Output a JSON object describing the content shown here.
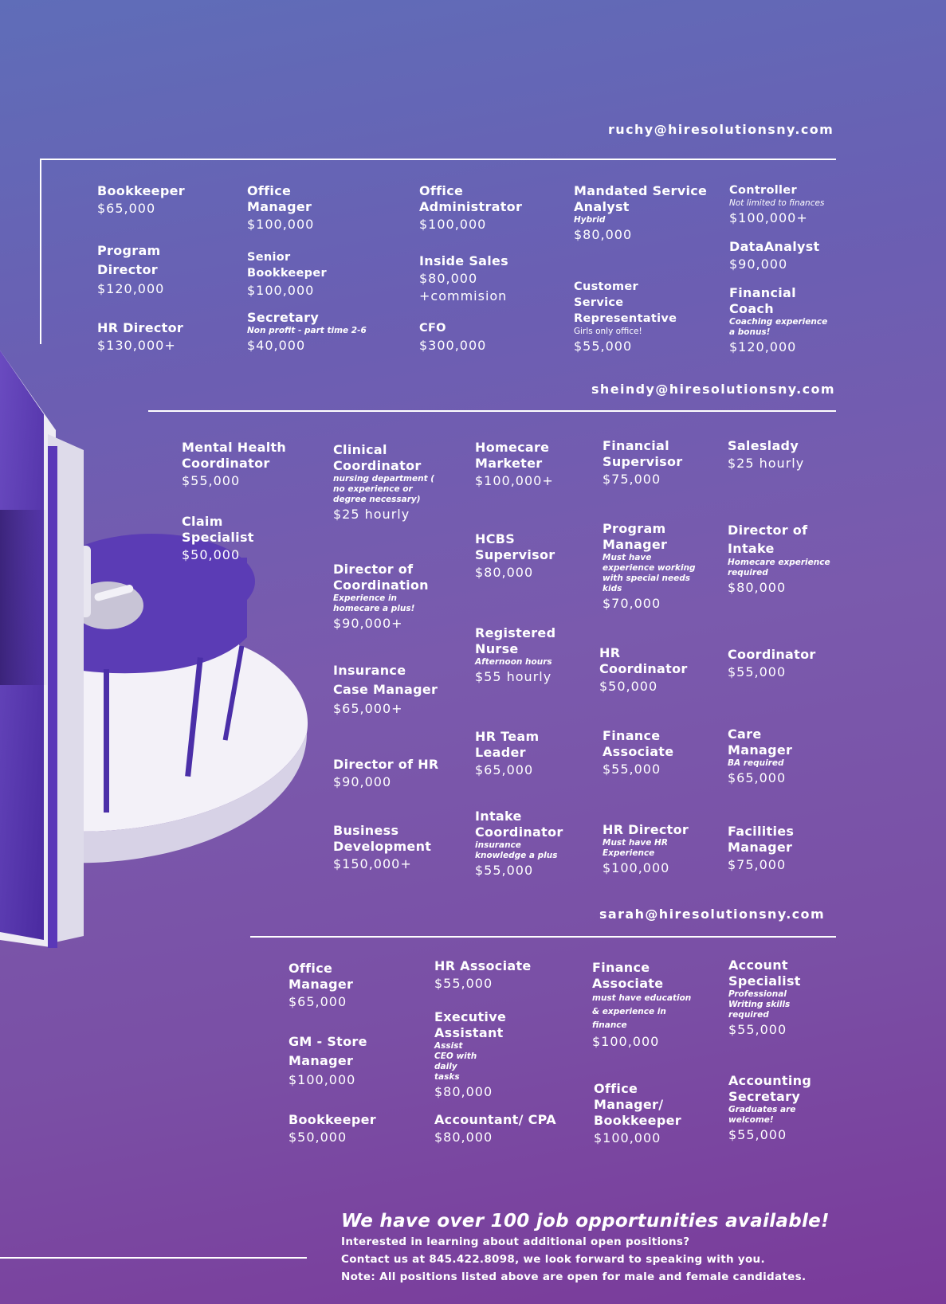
{
  "sections": [
    {
      "email": "ruchy@hiresolutionsny.com",
      "jobs": [
        {
          "title": "Bookkeeper",
          "note": "",
          "salary": "$65,000"
        },
        {
          "title": "Program Director",
          "note": "",
          "salary": "$120,000"
        },
        {
          "title": "HR Director",
          "note": "",
          "salary": "$130,000+"
        },
        {
          "title": "Office Manager",
          "note": "",
          "salary": "$100,000"
        },
        {
          "title": "Senior Bookkeeper",
          "note": "",
          "salary": "$100,000"
        },
        {
          "title": "Secretary",
          "note": "Non profit - part time 2-6",
          "salary": "$40,000"
        },
        {
          "title": "Office Administrator",
          "note": "",
          "salary": "$100,000"
        },
        {
          "title": "Inside Sales",
          "note": "",
          "salary": "$80,000 +commision"
        },
        {
          "title": "CFO",
          "note": "",
          "salary": "$300,000"
        },
        {
          "title": "Mandated Service Analyst",
          "note": "Hybrid",
          "salary": "$80,000"
        },
        {
          "title": "Customer Service Representative",
          "note": "Girls only office!",
          "salary": "$55,000"
        },
        {
          "title": "Controller",
          "note": "Not limited to finances",
          "salary": "$100,000+"
        },
        {
          "title": "DataAnalyst",
          "note": "",
          "salary": "$90,000"
        },
        {
          "title": "Financial Coach",
          "note": "Coaching experience a bonus!",
          "salary": "$120,000"
        }
      ]
    },
    {
      "email": "sheindy@hiresolutionsny.com",
      "jobs": [
        {
          "title": "Mental Health Coordinator",
          "note": "",
          "salary": "$55,000"
        },
        {
          "title": "Claim Specialist",
          "note": "",
          "salary": "$50,000"
        },
        {
          "title": "Clinical Coordinator",
          "note": "nursing department ( no experience or degree necessary)",
          "salary": "$25 hourly"
        },
        {
          "title": "Director of Coordination",
          "note": "Experience in homecare a plus!",
          "salary": "$90,000+"
        },
        {
          "title": "Insurance Case Manager",
          "note": "",
          "salary": "$65,000+"
        },
        {
          "title": "Director of HR",
          "note": "",
          "salary": "$90,000"
        },
        {
          "title": "Business Development",
          "note": "",
          "salary": "$150,000+"
        },
        {
          "title": "Homecare Marketer",
          "note": "",
          "salary": "$100,000+"
        },
        {
          "title": "HCBS Supervisor",
          "note": "",
          "salary": "$80,000"
        },
        {
          "title": "Registered Nurse",
          "note": "Afternoon hours",
          "salary": "$55 hourly"
        },
        {
          "title": "HR Team Leader",
          "note": "",
          "salary": "$65,000"
        },
        {
          "title": "Intake Coordinator",
          "note": "insurance knowledge a plus",
          "salary": "$55,000"
        },
        {
          "title": "Financial Supervisor",
          "note": "",
          "salary": "$75,000"
        },
        {
          "title": "Program Manager",
          "note": "Must have experience working with special needs kids",
          "salary": "$70,000"
        },
        {
          "title": "HR Coordinator",
          "note": "",
          "salary": "$50,000"
        },
        {
          "title": "Finance Associate",
          "note": "",
          "salary": "$55,000"
        },
        {
          "title": "HR Director",
          "note": "Must have HR Experience",
          "salary": "$100,000"
        },
        {
          "title": "Saleslady",
          "note": "",
          "salary": "$25 hourly"
        },
        {
          "title": "Director of Intake",
          "note": "Homecare experience required",
          "salary": "$80,000"
        },
        {
          "title": "Coordinator",
          "note": "",
          "salary": "$55,000"
        },
        {
          "title": "Care Manager",
          "note": "BA required",
          "salary": "$65,000"
        },
        {
          "title": "Facilities Manager",
          "note": "",
          "salary": "$75,000"
        }
      ]
    },
    {
      "email": "sarah@hiresolutionsny.com",
      "jobs": [
        {
          "title": "Office Manager",
          "note": "",
          "salary": "$65,000"
        },
        {
          "title": "GM - Store Manager",
          "note": "",
          "salary": "$100,000"
        },
        {
          "title": "Bookkeeper",
          "note": "",
          "salary": "$50,000"
        },
        {
          "title": "HR Associate",
          "note": "",
          "salary": "$55,000"
        },
        {
          "title": "Executive Assistant",
          "note": "Assist CEO with daily tasks",
          "salary": "$80,000"
        },
        {
          "title": "Accountant/ CPA",
          "note": "",
          "salary": "$80,000"
        },
        {
          "title": "Finance Associate",
          "note": "must have education & experience in finance",
          "salary": "$100,000"
        },
        {
          "title": "Office Manager/ Bookkeeper",
          "note": "",
          "salary": "$100,000"
        },
        {
          "title": "Account Specialist",
          "note": "Professional Writing skills required",
          "salary": "$55,000"
        },
        {
          "title": "Accounting Secretary",
          "note": "Graduates are welcome!",
          "salary": "$55,000"
        }
      ]
    }
  ],
  "footer": {
    "headline": "We have over 100 job opportunities available!",
    "line1": "Interested in learning about additional open positions?",
    "line2": "Contact us at 845.422.8098, we look forward to speaking with you.",
    "line3": "Note: All positions listed above are open for male and female candidates."
  }
}
